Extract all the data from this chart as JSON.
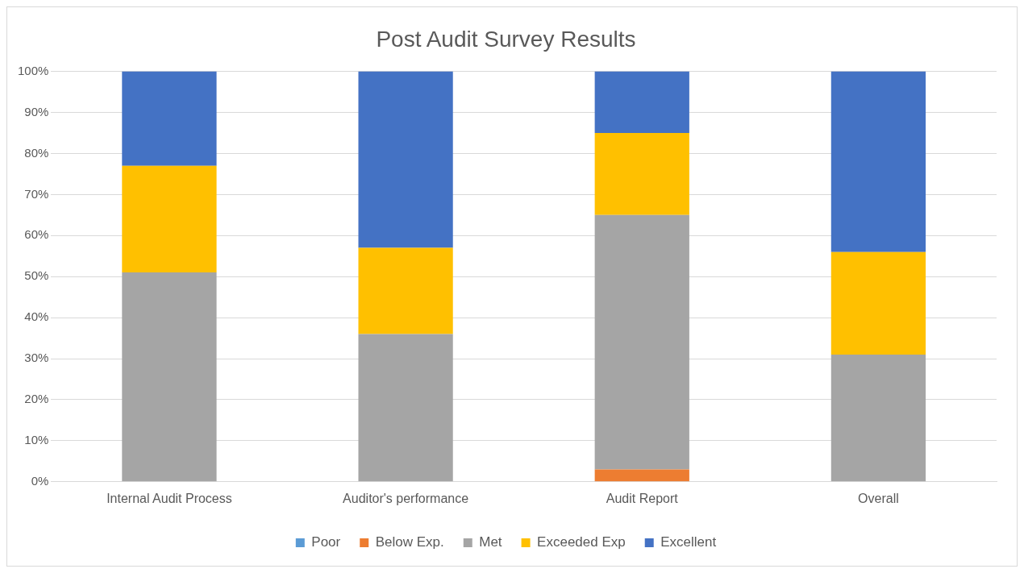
{
  "chart_data": {
    "type": "bar",
    "title": "Post Audit Survey Results",
    "categories": [
      "Internal Audit Process",
      "Auditor's performance",
      "Audit Report",
      "Overall"
    ],
    "stacked": true,
    "series": [
      {
        "name": "Poor",
        "color": "#5b9bd5",
        "values": [
          0,
          0,
          0,
          0
        ]
      },
      {
        "name": "Below Exp.",
        "color": "#ed7d31",
        "values": [
          0,
          0,
          3,
          0
        ]
      },
      {
        "name": "Met",
        "color": "#a5a5a5",
        "values": [
          51,
          36,
          62,
          31
        ]
      },
      {
        "name": "Exceeded Exp",
        "color": "#ffc000",
        "values": [
          26,
          21,
          20,
          25
        ]
      },
      {
        "name": "Excellent",
        "color": "#4472c4",
        "values": [
          23,
          43,
          15,
          44
        ]
      }
    ],
    "ylim": [
      0,
      100
    ],
    "yticks": [
      {
        "value": 0,
        "label": "0%"
      },
      {
        "value": 10,
        "label": "10%"
      },
      {
        "value": 20,
        "label": "20%"
      },
      {
        "value": 30,
        "label": "30%"
      },
      {
        "value": 40,
        "label": "40%"
      },
      {
        "value": 50,
        "label": "50%"
      },
      {
        "value": 60,
        "label": "60%"
      },
      {
        "value": 70,
        "label": "70%"
      },
      {
        "value": 80,
        "label": "80%"
      },
      {
        "value": 90,
        "label": "90%"
      },
      {
        "value": 100,
        "label": "100%"
      }
    ],
    "grid": "y",
    "legend": "bottom"
  }
}
